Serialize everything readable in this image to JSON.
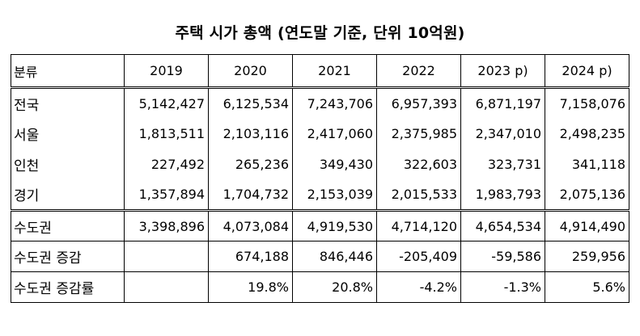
{
  "title": "주택 시가 총액 (연도말 기준, 단위 10억원)",
  "table": {
    "header": {
      "label": "분류",
      "years": [
        "2019",
        "2020",
        "2021",
        "2022",
        "2023 p)",
        "2024 p)"
      ]
    },
    "rows": [
      {
        "label": "전국",
        "values": [
          "5,142,427",
          "6,125,534",
          "7,243,706",
          "6,957,393",
          "6,871,197",
          "7,158,076"
        ]
      },
      {
        "label": "서울",
        "values": [
          "1,813,511",
          "2,103,116",
          "2,417,060",
          "2,375,985",
          "2,347,010",
          "2,498,235"
        ]
      },
      {
        "label": "인천",
        "values": [
          "227,492",
          "265,236",
          "349,430",
          "322,603",
          "323,731",
          "341,118"
        ]
      },
      {
        "label": "경기",
        "values": [
          "1,357,894",
          "1,704,732",
          "2,153,039",
          "2,015,533",
          "1,983,793",
          "2,075,136"
        ]
      },
      {
        "label": "수도권",
        "values": [
          "3,398,896",
          "4,073,084",
          "4,919,530",
          "4,714,120",
          "4,654,534",
          "4,914,490"
        ]
      },
      {
        "label": "수도권 증감",
        "values": [
          "",
          "674,188",
          "846,446",
          "-205,409",
          "-59,586",
          "259,956"
        ]
      },
      {
        "label": "수도권 증감률",
        "values": [
          "",
          "19.8%",
          "20.8%",
          "-4.2%",
          "-1.3%",
          "5.6%"
        ]
      }
    ]
  }
}
